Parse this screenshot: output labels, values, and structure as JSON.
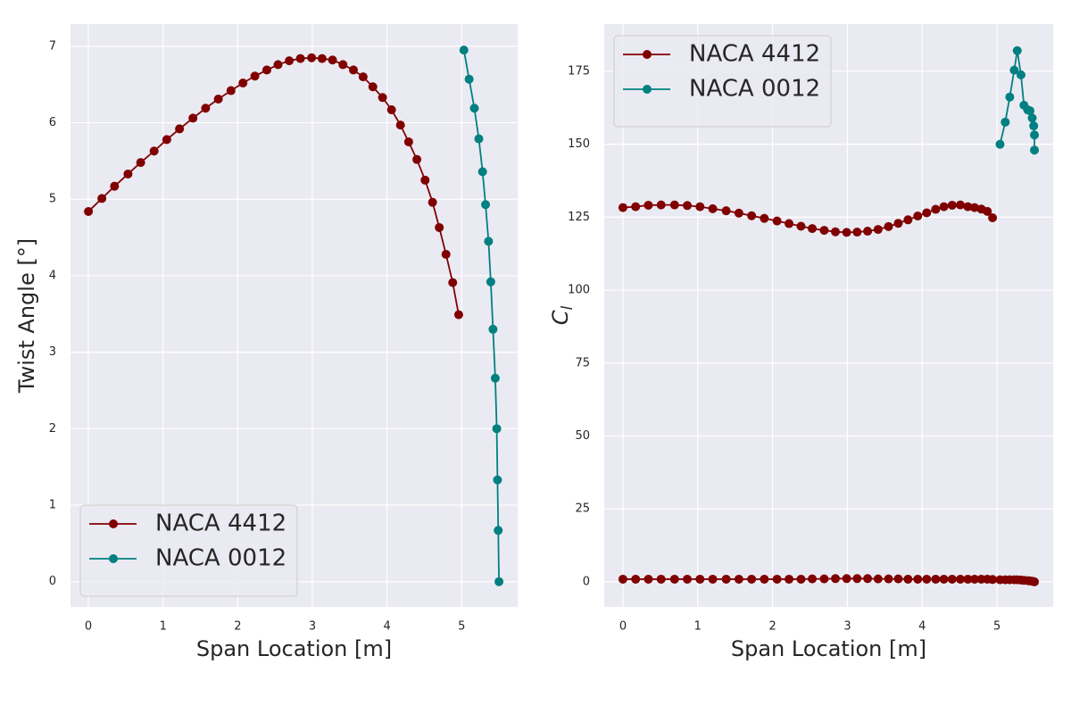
{
  "chart_data": [
    {
      "type": "line",
      "xlabel": "Span Location [m]",
      "ylabel": "Twist Angle [°]",
      "xlim": [
        -0.24,
        5.75
      ],
      "ylim": [
        -0.33,
        7.29
      ],
      "xticks": [
        0,
        1,
        2,
        3,
        4,
        5
      ],
      "yticks": [
        0,
        1,
        2,
        3,
        4,
        5,
        6,
        7
      ],
      "grid": true,
      "legend": "lower left",
      "series": [
        {
          "name": "NACA 4412",
          "color": "#800000",
          "x": [
            0,
            0.18,
            0.35,
            0.53,
            0.7,
            0.88,
            1.05,
            1.22,
            1.4,
            1.57,
            1.74,
            1.91,
            2.07,
            2.23,
            2.39,
            2.54,
            2.69,
            2.84,
            2.99,
            3.13,
            3.27,
            3.41,
            3.55,
            3.68,
            3.81,
            3.94,
            4.06,
            4.18,
            4.29,
            4.4,
            4.51,
            4.61,
            4.7,
            4.79,
            4.88,
            4.96
          ],
          "values": [
            4.84,
            5.01,
            5.17,
            5.33,
            5.48,
            5.63,
            5.78,
            5.92,
            6.06,
            6.19,
            6.31,
            6.42,
            6.52,
            6.61,
            6.69,
            6.76,
            6.81,
            6.84,
            6.85,
            6.84,
            6.82,
            6.76,
            6.69,
            6.6,
            6.47,
            6.33,
            6.17,
            5.97,
            5.75,
            5.52,
            5.25,
            4.96,
            4.63,
            4.28,
            3.91,
            3.49
          ]
        },
        {
          "name": "NACA 0012",
          "color": "#008080",
          "x": [
            5.03,
            5.1,
            5.17,
            5.23,
            5.28,
            5.32,
            5.36,
            5.39,
            5.42,
            5.45,
            5.47,
            5.48,
            5.49,
            5.5
          ],
          "values": [
            6.95,
            6.57,
            6.19,
            5.79,
            5.36,
            4.93,
            4.45,
            3.92,
            3.3,
            2.66,
            2.0,
            1.33,
            0.67,
            0
          ]
        }
      ]
    },
    {
      "type": "line",
      "xlabel": "Span Location [m]",
      "ylabel": "C",
      "ylabel_subscript": "l",
      "xlim": [
        -0.25,
        5.75
      ],
      "ylim": [
        -8.6,
        191.2
      ],
      "xticks": [
        0,
        1,
        2,
        3,
        4,
        5
      ],
      "yticks": [
        0,
        25,
        50,
        75,
        100,
        125,
        150,
        175
      ],
      "grid": true,
      "legend": "upper left",
      "series": [
        {
          "name": "NACA 4412",
          "color": "#800000",
          "x": [
            0,
            0.17,
            0.34,
            0.51,
            0.69,
            0.86,
            1.03,
            1.2,
            1.38,
            1.55,
            1.72,
            1.89,
            2.06,
            2.22,
            2.38,
            2.53,
            2.69,
            2.84,
            2.99,
            3.13,
            3.27,
            3.41,
            3.55,
            3.68,
            3.81,
            3.94,
            4.06,
            4.18,
            4.29,
            4.4,
            4.51,
            4.61,
            4.7,
            4.79,
            4.87,
            4.94
          ],
          "values": [
            128.3,
            128.6,
            129.1,
            129.2,
            129.2,
            129.0,
            128.6,
            127.9,
            127.2,
            126.4,
            125.5,
            124.6,
            123.7,
            122.8,
            121.9,
            121.1,
            120.5,
            120.0,
            119.8,
            119.9,
            120.2,
            120.8,
            121.8,
            122.9,
            124.1,
            125.4,
            126.5,
            127.7,
            128.6,
            129.1,
            129.2,
            128.6,
            128.3,
            127.8,
            127.0,
            124.8
          ]
        },
        {
          "name": "NACA 0012",
          "color": "#008080",
          "x": [
            5.04,
            5.11,
            5.17,
            5.23,
            5.27,
            5.32,
            5.36,
            5.41,
            5.44,
            5.47,
            5.49,
            5.5,
            5.5
          ],
          "values": [
            150.0,
            157.6,
            166.2,
            175.4,
            182.1,
            173.8,
            163.4,
            161.8,
            161.5,
            159.0,
            156.3,
            153.2,
            148.0
          ]
        },
        {
          "color": "#800000",
          "x": [
            0,
            0.17,
            0.34,
            0.51,
            0.69,
            0.86,
            1.03,
            1.2,
            1.38,
            1.55,
            1.72,
            1.89,
            2.06,
            2.22,
            2.38,
            2.53,
            2.69,
            2.84,
            2.99,
            3.13,
            3.27,
            3.41,
            3.55,
            3.68,
            3.81,
            3.94,
            4.06,
            4.18,
            4.29,
            4.4,
            4.51,
            4.61,
            4.7,
            4.79,
            4.87,
            4.94,
            5.04,
            5.11,
            5.17,
            5.23,
            5.27,
            5.32,
            5.36,
            5.41,
            5.44,
            5.47,
            5.49,
            5.5
          ],
          "values": [
            0.9,
            0.9,
            0.9,
            0.9,
            0.9,
            0.9,
            0.9,
            0.9,
            0.9,
            0.9,
            0.9,
            0.9,
            0.9,
            0.9,
            0.9,
            1.0,
            1.0,
            1.1,
            1.1,
            1.1,
            1.1,
            1.0,
            1.0,
            1.0,
            0.9,
            0.9,
            0.9,
            0.9,
            0.9,
            0.9,
            0.9,
            0.9,
            0.9,
            0.9,
            0.9,
            0.8,
            0.7,
            0.7,
            0.7,
            0.7,
            0.7,
            0.6,
            0.5,
            0.4,
            0.3,
            0.2,
            0.1,
            0
          ]
        }
      ]
    }
  ]
}
